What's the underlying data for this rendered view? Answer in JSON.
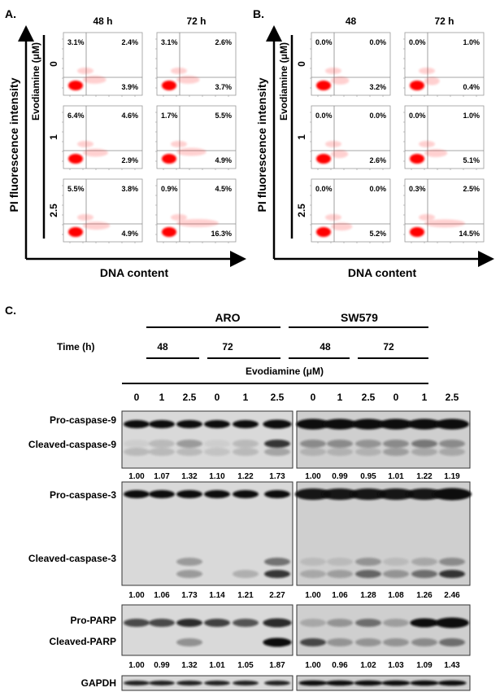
{
  "panels": [
    {
      "label": "A.",
      "columns": [
        "48 h",
        "72 h"
      ],
      "y_axis": "PI fluorescence intensity",
      "x_axis": "DNA content",
      "dose_axis": "Evodiamine (μM)",
      "rows": [
        {
          "dose": "0",
          "cells": [
            {
              "ul": "3.1%",
              "ur": "2.4%",
              "lr": "3.9%"
            },
            {
              "ul": "3.1%",
              "ur": "2.6%",
              "lr": "3.7%"
            }
          ]
        },
        {
          "dose": "1",
          "cells": [
            {
              "ul": "6.4%",
              "ur": "4.6%",
              "lr": "2.9%"
            },
            {
              "ul": "1.7%",
              "ur": "5.5%",
              "lr": "4.9%"
            }
          ]
        },
        {
          "dose": "2.5",
          "cells": [
            {
              "ul": "5.5%",
              "ur": "3.8%",
              "lr": "4.9%"
            },
            {
              "ul": "0.9%",
              "ur": "4.5%",
              "lr": "16.3%"
            }
          ]
        }
      ]
    },
    {
      "label": "B.",
      "columns": [
        "48",
        "72 h"
      ],
      "y_axis": "PI fluorescence intensity",
      "x_axis": "DNA content",
      "dose_axis": "Evodiamine (μM)",
      "rows": [
        {
          "dose": "0",
          "cells": [
            {
              "ul": "0.0%",
              "ur": "0.0%",
              "lr": "3.2%"
            },
            {
              "ul": "0.0%",
              "ur": "1.0%",
              "lr": "0.4%"
            }
          ]
        },
        {
          "dose": "1",
          "cells": [
            {
              "ul": "0.0%",
              "ur": "0.0%",
              "lr": "2.6%"
            },
            {
              "ul": "0.0%",
              "ur": "1.0%",
              "lr": "5.1%"
            }
          ]
        },
        {
          "dose": "2.5",
          "cells": [
            {
              "ul": "0.0%",
              "ur": "0.0%",
              "lr": "5.2%"
            },
            {
              "ul": "0.3%",
              "ur": "2.5%",
              "lr": "14.5%"
            }
          ]
        }
      ]
    }
  ],
  "western": {
    "label": "C.",
    "cell_lines": [
      "ARO",
      "SW579"
    ],
    "time_label": "Time (h)",
    "times": [
      "48",
      "72",
      "48",
      "72"
    ],
    "treatment_label": "Evodiamine (μM)",
    "doses": [
      "0",
      "1",
      "2.5",
      "0",
      "1",
      "2.5",
      "0",
      "1",
      "2.5",
      "0",
      "1",
      "2.5"
    ],
    "blots": [
      {
        "labels": [
          "Pro-caspase-9",
          "Cleaved-caspase-9"
        ],
        "ratios": [
          "1.00",
          "1.07",
          "1.32",
          "1.10",
          "1.22",
          "1.73",
          "1.00",
          "0.99",
          "0.95",
          "1.01",
          "1.22",
          "1.19"
        ]
      },
      {
        "labels": [
          "Pro-caspase-3",
          "Cleaved-caspase-3"
        ],
        "ratios": [
          "1.00",
          "1.06",
          "1.73",
          "1.14",
          "1.21",
          "2.27",
          "1.00",
          "1.06",
          "1.28",
          "1.08",
          "1.26",
          "2.46"
        ]
      },
      {
        "labels": [
          "Pro-PARP",
          "Cleaved-PARP"
        ],
        "ratios": [
          "1.00",
          "0.99",
          "1.32",
          "1.01",
          "1.05",
          "1.87",
          "1.00",
          "0.96",
          "1.02",
          "1.03",
          "1.09",
          "1.43"
        ]
      },
      {
        "labels": [
          "GAPDH"
        ],
        "ratios": []
      }
    ]
  },
  "colors": {
    "dots": "#ff0000",
    "band": "#111111",
    "membrane": "#d9d9d9"
  }
}
